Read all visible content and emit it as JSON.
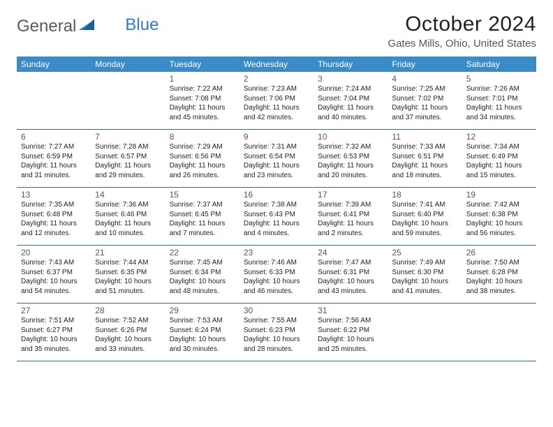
{
  "logo": {
    "part1": "General",
    "part2": "Blue"
  },
  "title": "October 2024",
  "location": "Gates Mills, Ohio, United States",
  "colors": {
    "header_bg": "#3b8bc8",
    "header_text": "#ffffff",
    "rule": "#2f6fa0",
    "brand_gray": "#5a5a5a",
    "brand_blue": "#2f7bbf"
  },
  "weekdays": [
    "Sunday",
    "Monday",
    "Tuesday",
    "Wednesday",
    "Thursday",
    "Friday",
    "Saturday"
  ],
  "weeks": [
    [
      null,
      null,
      {
        "n": "1",
        "sr": "7:22 AM",
        "ss": "7:08 PM",
        "dl": "11 hours and 45 minutes."
      },
      {
        "n": "2",
        "sr": "7:23 AM",
        "ss": "7:06 PM",
        "dl": "11 hours and 42 minutes."
      },
      {
        "n": "3",
        "sr": "7:24 AM",
        "ss": "7:04 PM",
        "dl": "11 hours and 40 minutes."
      },
      {
        "n": "4",
        "sr": "7:25 AM",
        "ss": "7:02 PM",
        "dl": "11 hours and 37 minutes."
      },
      {
        "n": "5",
        "sr": "7:26 AM",
        "ss": "7:01 PM",
        "dl": "11 hours and 34 minutes."
      }
    ],
    [
      {
        "n": "6",
        "sr": "7:27 AM",
        "ss": "6:59 PM",
        "dl": "11 hours and 31 minutes."
      },
      {
        "n": "7",
        "sr": "7:28 AM",
        "ss": "6:57 PM",
        "dl": "11 hours and 29 minutes."
      },
      {
        "n": "8",
        "sr": "7:29 AM",
        "ss": "6:56 PM",
        "dl": "11 hours and 26 minutes."
      },
      {
        "n": "9",
        "sr": "7:31 AM",
        "ss": "6:54 PM",
        "dl": "11 hours and 23 minutes."
      },
      {
        "n": "10",
        "sr": "7:32 AM",
        "ss": "6:53 PM",
        "dl": "11 hours and 20 minutes."
      },
      {
        "n": "11",
        "sr": "7:33 AM",
        "ss": "6:51 PM",
        "dl": "11 hours and 18 minutes."
      },
      {
        "n": "12",
        "sr": "7:34 AM",
        "ss": "6:49 PM",
        "dl": "11 hours and 15 minutes."
      }
    ],
    [
      {
        "n": "13",
        "sr": "7:35 AM",
        "ss": "6:48 PM",
        "dl": "11 hours and 12 minutes."
      },
      {
        "n": "14",
        "sr": "7:36 AM",
        "ss": "6:46 PM",
        "dl": "11 hours and 10 minutes."
      },
      {
        "n": "15",
        "sr": "7:37 AM",
        "ss": "6:45 PM",
        "dl": "11 hours and 7 minutes."
      },
      {
        "n": "16",
        "sr": "7:38 AM",
        "ss": "6:43 PM",
        "dl": "11 hours and 4 minutes."
      },
      {
        "n": "17",
        "sr": "7:39 AM",
        "ss": "6:41 PM",
        "dl": "11 hours and 2 minutes."
      },
      {
        "n": "18",
        "sr": "7:41 AM",
        "ss": "6:40 PM",
        "dl": "10 hours and 59 minutes."
      },
      {
        "n": "19",
        "sr": "7:42 AM",
        "ss": "6:38 PM",
        "dl": "10 hours and 56 minutes."
      }
    ],
    [
      {
        "n": "20",
        "sr": "7:43 AM",
        "ss": "6:37 PM",
        "dl": "10 hours and 54 minutes."
      },
      {
        "n": "21",
        "sr": "7:44 AM",
        "ss": "6:35 PM",
        "dl": "10 hours and 51 minutes."
      },
      {
        "n": "22",
        "sr": "7:45 AM",
        "ss": "6:34 PM",
        "dl": "10 hours and 48 minutes."
      },
      {
        "n": "23",
        "sr": "7:46 AM",
        "ss": "6:33 PM",
        "dl": "10 hours and 46 minutes."
      },
      {
        "n": "24",
        "sr": "7:47 AM",
        "ss": "6:31 PM",
        "dl": "10 hours and 43 minutes."
      },
      {
        "n": "25",
        "sr": "7:49 AM",
        "ss": "6:30 PM",
        "dl": "10 hours and 41 minutes."
      },
      {
        "n": "26",
        "sr": "7:50 AM",
        "ss": "6:28 PM",
        "dl": "10 hours and 38 minutes."
      }
    ],
    [
      {
        "n": "27",
        "sr": "7:51 AM",
        "ss": "6:27 PM",
        "dl": "10 hours and 35 minutes."
      },
      {
        "n": "28",
        "sr": "7:52 AM",
        "ss": "6:26 PM",
        "dl": "10 hours and 33 minutes."
      },
      {
        "n": "29",
        "sr": "7:53 AM",
        "ss": "6:24 PM",
        "dl": "10 hours and 30 minutes."
      },
      {
        "n": "30",
        "sr": "7:55 AM",
        "ss": "6:23 PM",
        "dl": "10 hours and 28 minutes."
      },
      {
        "n": "31",
        "sr": "7:56 AM",
        "ss": "6:22 PM",
        "dl": "10 hours and 25 minutes."
      },
      null,
      null
    ]
  ],
  "labels": {
    "sunrise": "Sunrise: ",
    "sunset": "Sunset: ",
    "daylight": "Daylight: "
  }
}
